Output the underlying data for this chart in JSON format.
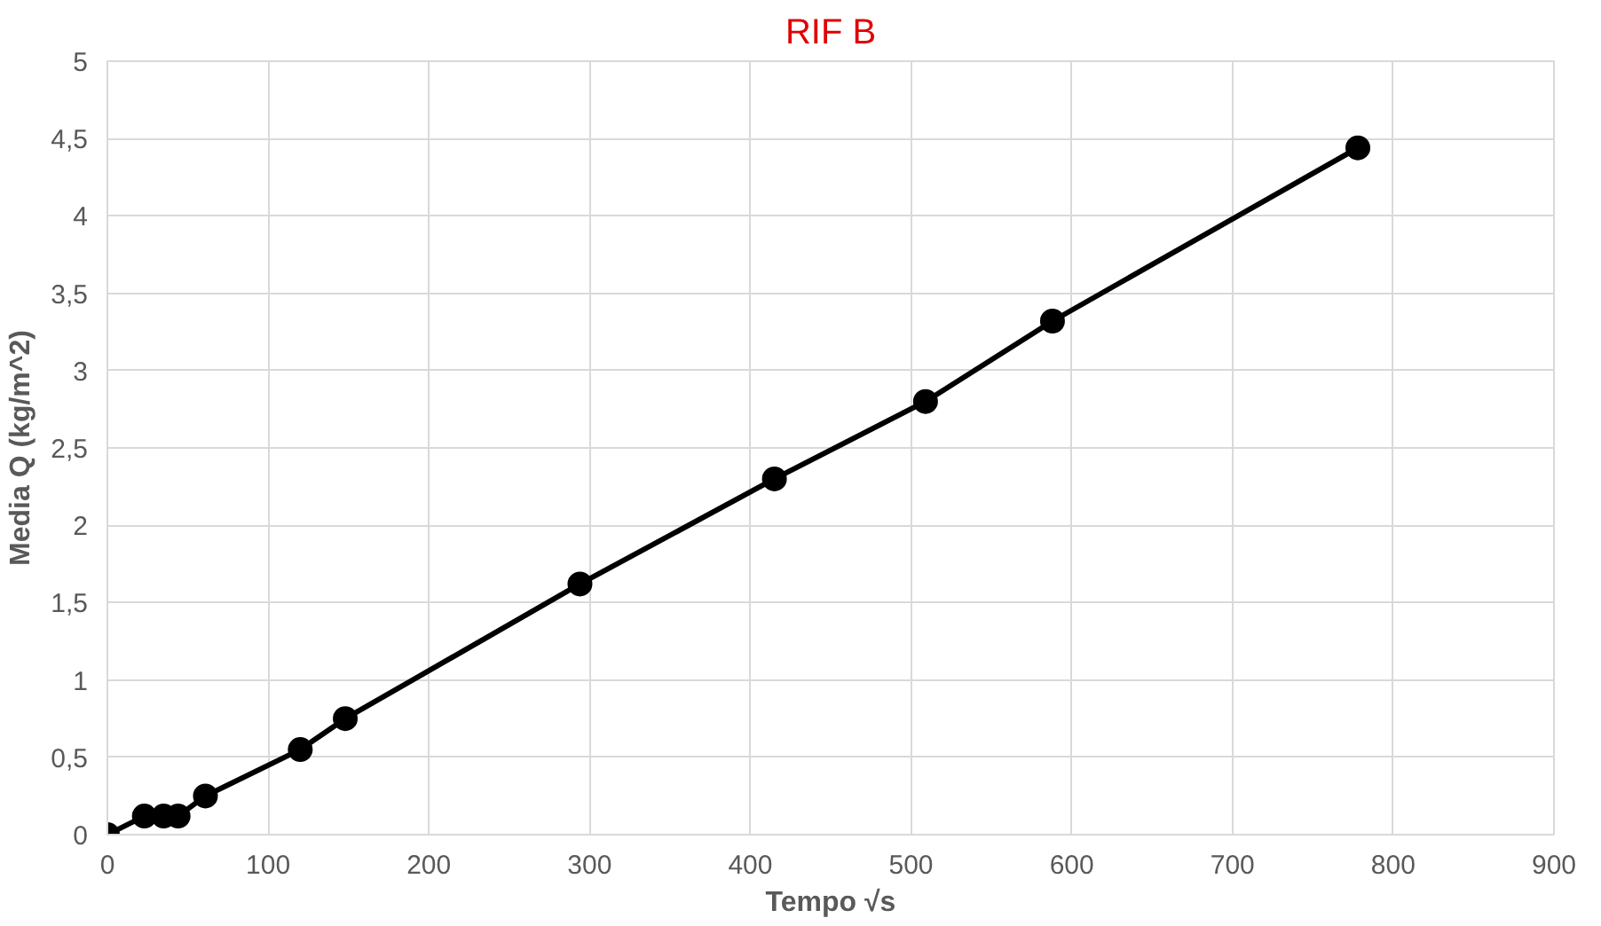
{
  "chart_data": {
    "type": "line",
    "title": "RIF B",
    "xlabel": "Tempo √s",
    "ylabel": "Media Q (kg/m^2)",
    "x": [
      0,
      23,
      35,
      44,
      61,
      120,
      148,
      294,
      415,
      509,
      588,
      778
    ],
    "series": [
      {
        "color": "#000000",
        "values": [
          0,
          0.12,
          0.12,
          0.12,
          0.25,
          0.55,
          0.75,
          1.62,
          2.3,
          2.8,
          3.32,
          4.44
        ]
      }
    ],
    "xlim": [
      0,
      900
    ],
    "xticks": [
      0,
      100,
      200,
      300,
      400,
      500,
      600,
      700,
      800,
      900
    ],
    "ylim": [
      0,
      5
    ],
    "yticks": [
      {
        "value": 0,
        "label": "0"
      },
      {
        "value": 0.5,
        "label": "0,5"
      },
      {
        "value": 1,
        "label": "1"
      },
      {
        "value": 1.5,
        "label": "1,5"
      },
      {
        "value": 2,
        "label": "2"
      },
      {
        "value": 2.5,
        "label": "2,5"
      },
      {
        "value": 3,
        "label": "3"
      },
      {
        "value": 3.5,
        "label": "3,5"
      },
      {
        "value": 4,
        "label": "4"
      },
      {
        "value": 4.5,
        "label": "4,5"
      },
      {
        "value": 5,
        "label": "5"
      }
    ],
    "grid": true,
    "marker": "circle",
    "line_style": "solid"
  }
}
